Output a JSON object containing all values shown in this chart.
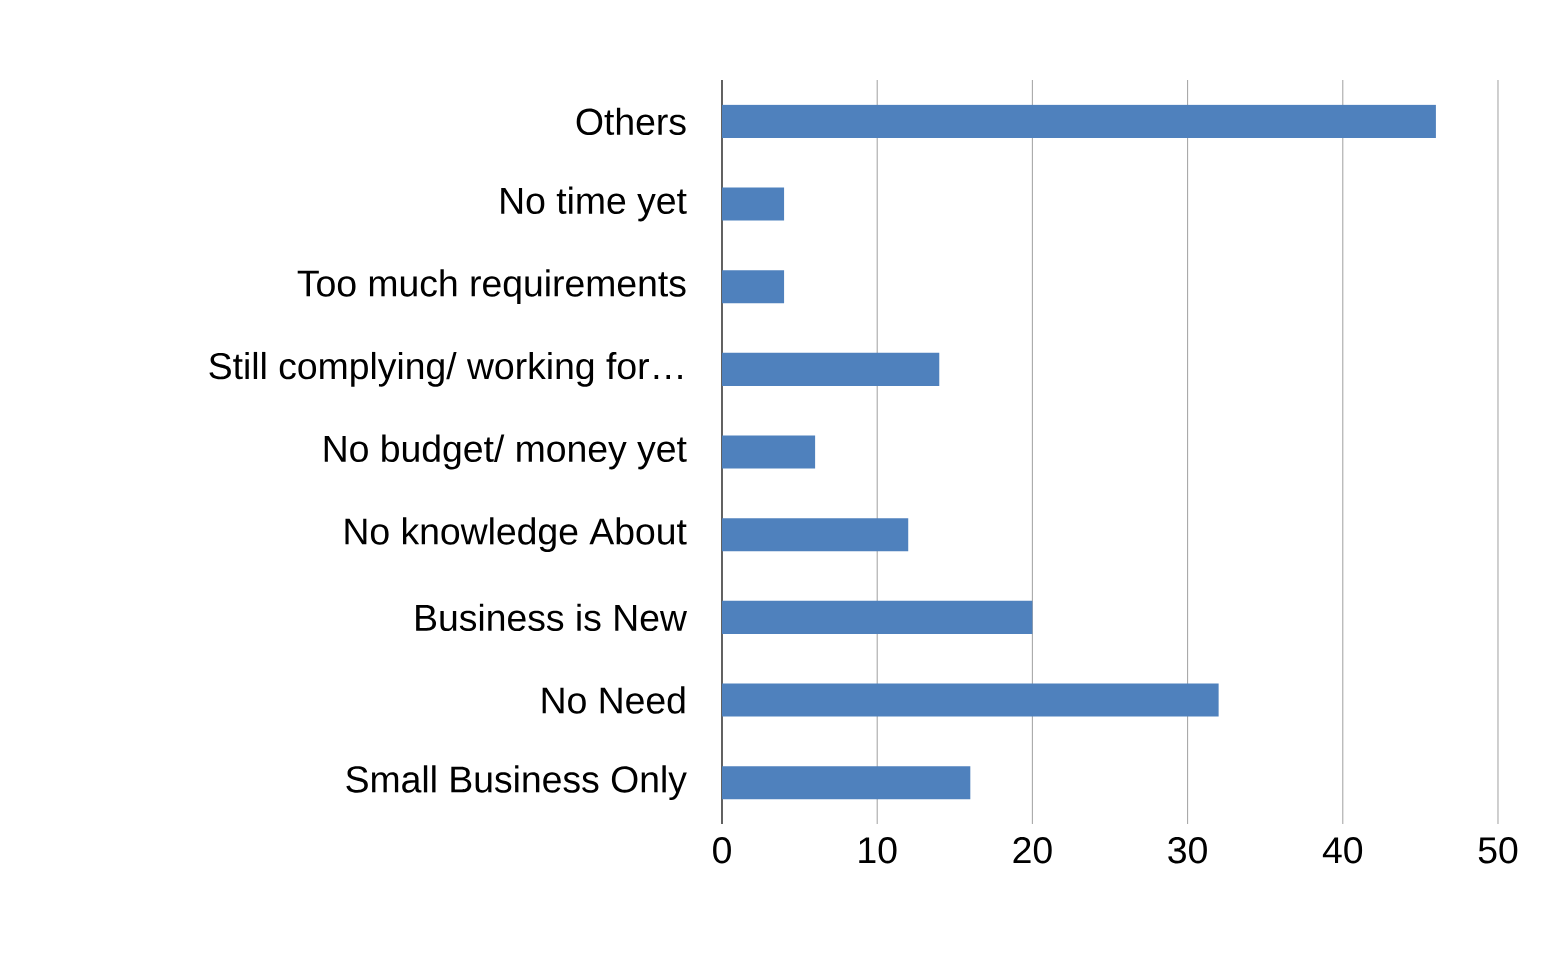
{
  "chart_data": {
    "type": "bar",
    "orientation": "horizontal",
    "categories": [
      "Others",
      "No time yet",
      "Too much requirements",
      "Still complying/ working for…",
      "No budget/ money yet",
      "No knowledge About",
      "Business is New",
      "No Need",
      "Small Business Only"
    ],
    "values": [
      46,
      4,
      4,
      14,
      6,
      12,
      20,
      32,
      16
    ],
    "color": "#4f81bd",
    "xlim": [
      0,
      50
    ],
    "xticks": [
      0,
      10,
      20,
      30,
      40,
      50
    ],
    "grid": "x"
  }
}
